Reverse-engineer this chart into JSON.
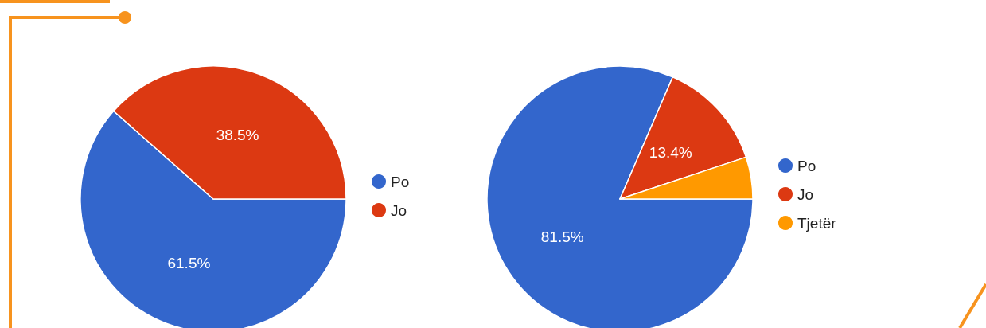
{
  "chart_data": [
    {
      "type": "pie",
      "categories": [
        "Po",
        "Jo"
      ],
      "values": [
        61.5,
        38.5
      ],
      "colors": [
        "#3366cc",
        "#dc3912"
      ],
      "value_labels": [
        "61.5%",
        "38.5%"
      ],
      "legend": "right"
    },
    {
      "type": "pie",
      "categories": [
        "Po",
        "Jo",
        "Tjetër"
      ],
      "values": [
        81.5,
        13.4,
        5.1
      ],
      "colors": [
        "#3366cc",
        "#dc3912",
        "#ff9900"
      ],
      "value_labels": [
        "81.5%",
        "13.4%",
        null
      ],
      "legend": "right"
    }
  ]
}
